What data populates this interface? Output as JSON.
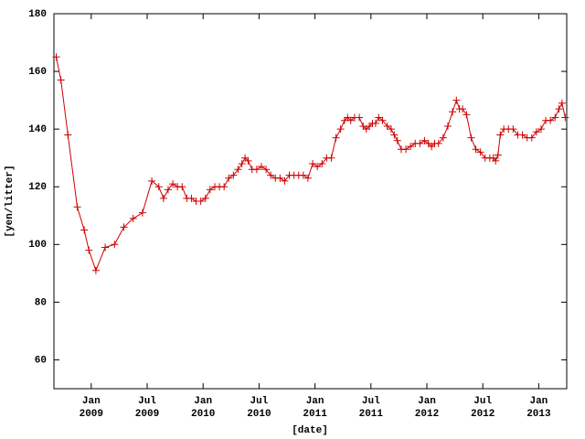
{
  "chart_data": {
    "type": "line",
    "xlabel": "[date]",
    "ylabel": "[yen/litter]",
    "x": [
      "2008-09",
      "2008-09",
      "2008-10",
      "2008-11",
      "2008-12",
      "2008-12",
      "2009-01",
      "2009-02",
      "2009-03",
      "2009-04",
      "2009-05",
      "2009-06",
      "2009-07",
      "2009-08",
      "2009-08",
      "2009-09",
      "2009-09",
      "2009-10",
      "2009-10",
      "2009-11",
      "2009-11",
      "2009-12",
      "2009-12",
      "2010-01",
      "2010-01",
      "2010-02",
      "2010-02",
      "2010-03",
      "2010-03",
      "2010-04",
      "2010-04",
      "2010-05",
      "2010-05",
      "2010-05",
      "2010-06",
      "2010-06",
      "2010-07",
      "2010-07",
      "2010-08",
      "2010-08",
      "2010-09",
      "2010-09",
      "2010-10",
      "2010-10",
      "2010-11",
      "2010-11",
      "2010-12",
      "2010-12",
      "2011-01",
      "2011-01",
      "2011-02",
      "2011-02",
      "2011-03",
      "2011-03",
      "2011-04",
      "2011-04",
      "2011-04",
      "2011-05",
      "2011-05",
      "2011-06",
      "2011-06",
      "2011-06",
      "2011-07",
      "2011-07",
      "2011-07",
      "2011-08",
      "2011-08",
      "2011-09",
      "2011-09",
      "2011-09",
      "2011-10",
      "2011-10",
      "2011-11",
      "2011-11",
      "2011-12",
      "2011-12",
      "2012-01",
      "2012-01",
      "2012-01",
      "2012-02",
      "2012-02",
      "2012-03",
      "2012-03",
      "2012-04",
      "2012-04",
      "2012-04",
      "2012-05",
      "2012-05",
      "2012-06",
      "2012-06",
      "2012-07",
      "2012-07",
      "2012-08",
      "2012-08",
      "2012-08",
      "2012-08",
      "2012-09",
      "2012-09",
      "2012-10",
      "2012-10",
      "2012-11",
      "2012-11",
      "2012-12",
      "2012-12",
      "2013-01",
      "2013-01",
      "2013-02",
      "2013-02",
      "2013-03",
      "2013-03",
      "2013-03"
    ],
    "series": [
      {
        "color": "#cc0000",
        "values": [
          165,
          157,
          138,
          113,
          105,
          98,
          91,
          99,
          100,
          106,
          109,
          111,
          122,
          120,
          116,
          119,
          121,
          120,
          120,
          116,
          116,
          115,
          115,
          116,
          119,
          120,
          120,
          120,
          123,
          124,
          126,
          128,
          130,
          129,
          126,
          126,
          127,
          126,
          124,
          123,
          123,
          122,
          124,
          124,
          124,
          124,
          123,
          128,
          127,
          128,
          130,
          130,
          137,
          140,
          143,
          144,
          143,
          144,
          144,
          141,
          140,
          141,
          142,
          142,
          144,
          143,
          141,
          140,
          138,
          136,
          133,
          133,
          134,
          135,
          135,
          136,
          135,
          134,
          135,
          135,
          137,
          141,
          146,
          150,
          147,
          147,
          145,
          137,
          133,
          132,
          130,
          130,
          130,
          129,
          131,
          138,
          140,
          140,
          140,
          138,
          138,
          137,
          137,
          139,
          140,
          143,
          143,
          144,
          147,
          149,
          144
        ]
      }
    ],
    "xlim": [
      "2008-09",
      "2013-04"
    ],
    "xticks": [
      {
        "value": "2009-01",
        "label": "Jan\n2009"
      },
      {
        "value": "2009-07",
        "label": "Jul\n2009"
      },
      {
        "value": "2010-01",
        "label": "Jan\n2010"
      },
      {
        "value": "2010-07",
        "label": "Jul\n2010"
      },
      {
        "value": "2011-01",
        "label": "Jan\n2011"
      },
      {
        "value": "2011-07",
        "label": "Jul\n2011"
      },
      {
        "value": "2012-01",
        "label": "Jan\n2012"
      },
      {
        "value": "2012-07",
        "label": "Jul\n2012"
      },
      {
        "value": "2013-01",
        "label": "Jan\n2013"
      }
    ],
    "ylim": [
      50,
      180
    ],
    "yticks": [
      60,
      80,
      100,
      120,
      140,
      160,
      180
    ],
    "grid": false
  }
}
